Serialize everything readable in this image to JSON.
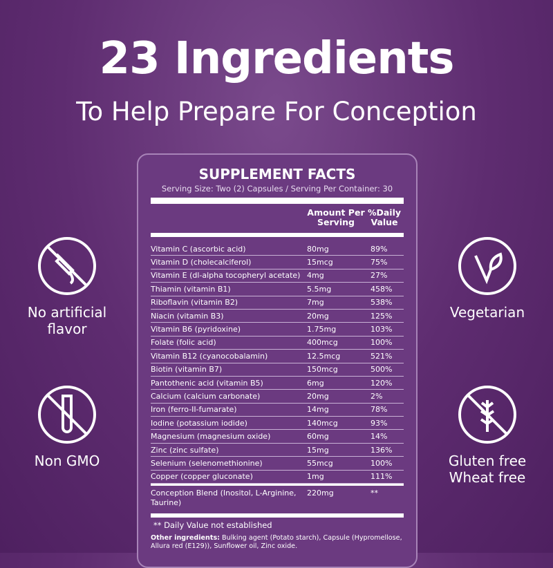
{
  "headline": "23 Ingredients",
  "subheadline": "To Help Prepare For Conception",
  "facts": {
    "title": "SUPPLEMENT FACTS",
    "serving": "Serving Size: Two (2) Capsules / Serving Per Container: 30",
    "col_amount": "Amount Per Serving",
    "col_dv": "%Daily Value",
    "rows": [
      [
        "Vitamin C (ascorbic acid)",
        "80mg",
        "89%"
      ],
      [
        "Vitamin D (cholecalciferol)",
        "15mcg",
        "75%"
      ],
      [
        "Vitamin E (dl-alpha tocopheryl acetate)",
        "4mg",
        "27%"
      ],
      [
        "Thiamin (vitamin B1)",
        "5.5mg",
        "458%"
      ],
      [
        "Riboflavin (vitamin B2)",
        "7mg",
        "538%"
      ],
      [
        "Niacin (vitamin B3)",
        "20mg",
        "125%"
      ],
      [
        "Vitamin B6 (pyridoxine)",
        "1.75mg",
        "103%"
      ],
      [
        "Folate (folic acid)",
        "400mcg",
        "100%"
      ],
      [
        "Vitamin B12 (cyanocobalamin)",
        "12.5mcg",
        "521%"
      ],
      [
        "Biotin (vitamin B7)",
        "150mcg",
        "500%"
      ],
      [
        "Pantothenic acid (vitamin B5)",
        "6mg",
        "120%"
      ],
      [
        "Calcium (calcium carbonate)",
        "20mg",
        "2%"
      ],
      [
        "Iron (ferro-II-fumarate)",
        "14mg",
        "78%"
      ],
      [
        "Iodine (potassium iodide)",
        "140mcg",
        "93%"
      ],
      [
        "Magnesium (magnesium oxide)",
        "60mg",
        "14%"
      ],
      [
        "Zinc (zinc sulfate)",
        "15mg",
        "136%"
      ],
      [
        "Selenium (selenomethionine)",
        "55mcg",
        "100%"
      ],
      [
        "Copper (copper gluconate)",
        "1mg",
        "111%"
      ]
    ],
    "blend": {
      "name": "Conception Blend (Inositol, L-Arginine, Taurine)",
      "amount": "220mg",
      "dv": "**"
    },
    "note": "** Daily Value not established",
    "other_label": "Other ingredients:",
    "other_text": " Bulking agent (Potato starch), Capsule (Hypromellose, Allura red (E129)), Sunflower oil, Zinc oxide."
  },
  "features": {
    "no_flavor": "No artificial flavor",
    "non_gmo": "Non GMO",
    "vegetarian": "Vegetarian",
    "gluten": "Gluten free",
    "wheat": "Wheat free"
  }
}
